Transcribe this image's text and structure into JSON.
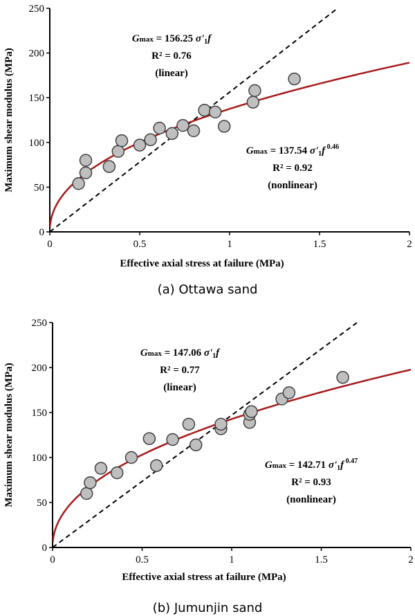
{
  "chart_data": [
    {
      "type": "scatter",
      "caption": "(a) Ottawa sand",
      "xlabel": "Effective axial stress at failure (MPa)",
      "ylabel": "Maximum shear modulus (MPa)",
      "xlim": [
        0,
        2
      ],
      "ylim": [
        0,
        250
      ],
      "xticks": [
        0,
        0.5,
        1,
        1.5,
        2
      ],
      "xtick_labels": [
        "0",
        "0.5",
        "1",
        "1.5",
        "2"
      ],
      "yticks": [
        0,
        50,
        100,
        150,
        200,
        250
      ],
      "ytick_labels": [
        "0",
        "50",
        "100",
        "150",
        "200",
        "250"
      ],
      "grid": false,
      "points": {
        "x": [
          0.16,
          0.2,
          0.2,
          0.33,
          0.38,
          0.4,
          0.5,
          0.56,
          0.61,
          0.68,
          0.74,
          0.8,
          0.86,
          0.92,
          0.97,
          1.13,
          1.14,
          1.36
        ],
        "y": [
          54,
          66,
          80,
          73,
          90,
          102,
          97,
          103,
          116,
          110,
          119,
          113,
          136,
          134,
          118,
          145,
          158,
          171
        ]
      },
      "fits": {
        "linear": {
          "coef": 156.25,
          "exponent": 1,
          "color": "#000000",
          "dash": true
        },
        "nonlinear": {
          "coef": 137.54,
          "exponent": 0.46,
          "color": "#a8191b",
          "dash": false
        }
      },
      "annotations": [
        {
          "eq_value": "= 156.25",
          "r2": "R² = 0.76",
          "kind": "(linear)",
          "exponent_text": ""
        },
        {
          "eq_value": "= 137.54",
          "r2": "R² = 0.92",
          "kind": "(nonlinear)",
          "exponent_text": "0.46"
        }
      ]
    },
    {
      "type": "scatter",
      "caption": "(b) Jumunjin sand",
      "xlabel": "Effective axial stress at failure (MPa)",
      "ylabel": "Maximum shear modulus (MPa)",
      "xlim": [
        0,
        2
      ],
      "ylim": [
        0,
        250
      ],
      "xticks": [
        0,
        0.5,
        1,
        1.5,
        2
      ],
      "xtick_labels": [
        "0",
        "0.5",
        "1",
        "1.5",
        "2"
      ],
      "yticks": [
        0,
        50,
        100,
        150,
        200,
        250
      ],
      "ytick_labels": [
        "0",
        "50",
        "100",
        "150",
        "200",
        "250"
      ],
      "grid": false,
      "points": {
        "x": [
          0.19,
          0.21,
          0.27,
          0.36,
          0.44,
          0.54,
          0.58,
          0.67,
          0.76,
          0.8,
          0.94,
          0.94,
          1.1,
          1.1,
          1.11,
          1.28,
          1.32,
          1.62
        ],
        "y": [
          60,
          72,
          88,
          83,
          100,
          121,
          91,
          120,
          137,
          114,
          132,
          137,
          139,
          148,
          151,
          165,
          172,
          189
        ]
      },
      "fits": {
        "linear": {
          "coef": 147.06,
          "exponent": 1,
          "color": "#000000",
          "dash": true
        },
        "nonlinear": {
          "coef": 142.71,
          "exponent": 0.47,
          "color": "#a8191b",
          "dash": false
        }
      },
      "annotations": [
        {
          "eq_value": "= 147.06",
          "r2": "R² = 0.77",
          "kind": "(linear)",
          "exponent_text": ""
        },
        {
          "eq_value": "= 142.71",
          "r2": "R² = 0.93",
          "kind": "(nonlinear)",
          "exponent_text": "0.47"
        }
      ]
    }
  ],
  "symbols": {
    "G": "G",
    "max": "max",
    "sigma": " σ'",
    "sub": "1",
    "f": "f"
  },
  "style": {
    "marker_fill": "#bfbfbf",
    "marker_stroke": "#404040"
  }
}
